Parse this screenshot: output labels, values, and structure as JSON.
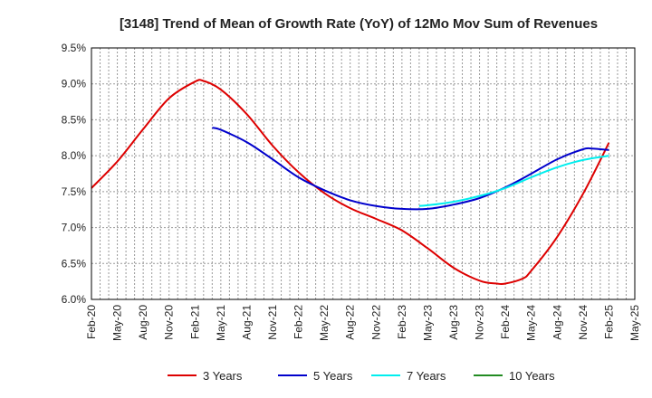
{
  "chart_data": {
    "type": "line",
    "title": "[3148]  Trend of Mean of Growth Rate (YoY) of 12Mo Mov Sum of Revenues",
    "xlabel": "",
    "ylabel": "",
    "ylim": [
      6.0,
      9.5
    ],
    "y_ticks": [
      6.0,
      6.5,
      7.0,
      7.5,
      8.0,
      8.5,
      9.0,
      9.5
    ],
    "y_tick_labels": [
      "6.0%",
      "6.5%",
      "7.0%",
      "7.5%",
      "8.0%",
      "8.5%",
      "9.0%",
      "9.5%"
    ],
    "x_ticks": [
      "Feb-20",
      "May-20",
      "Aug-20",
      "Nov-20",
      "Feb-21",
      "May-21",
      "Aug-21",
      "Nov-21",
      "Feb-22",
      "May-22",
      "Aug-22",
      "Nov-22",
      "Feb-23",
      "May-23",
      "Aug-23",
      "Nov-23",
      "Feb-24",
      "May-24",
      "Aug-24",
      "Nov-24",
      "Feb-25",
      "May-25"
    ],
    "grid": true,
    "legend_position": "bottom",
    "series": [
      {
        "name": "3 Years",
        "color": "#dd0000",
        "x": [
          "Feb-20",
          "May-20",
          "Aug-20",
          "Nov-20",
          "Feb-21",
          "Mar-21",
          "May-21",
          "Aug-21",
          "Nov-21",
          "Feb-22",
          "May-22",
          "Aug-22",
          "Nov-22",
          "Feb-23",
          "May-23",
          "Aug-23",
          "Nov-23",
          "Jan-24",
          "Feb-24",
          "Apr-24",
          "May-24",
          "Aug-24",
          "Nov-24",
          "Feb-25"
        ],
        "values": [
          7.55,
          7.92,
          8.37,
          8.8,
          9.03,
          9.04,
          8.92,
          8.58,
          8.14,
          7.77,
          7.48,
          7.27,
          7.12,
          6.96,
          6.71,
          6.44,
          6.26,
          6.22,
          6.22,
          6.29,
          6.4,
          6.87,
          7.47,
          8.18
        ]
      },
      {
        "name": "5 Years",
        "color": "#0000cc",
        "x": [
          "Apr-21",
          "May-21",
          "Aug-21",
          "Nov-21",
          "Feb-22",
          "May-22",
          "Aug-22",
          "Nov-22",
          "Feb-23",
          "May-23",
          "Aug-23",
          "Nov-23",
          "Feb-24",
          "May-24",
          "Aug-24",
          "Nov-24",
          "Dec-24",
          "Feb-25"
        ],
        "values": [
          8.39,
          8.36,
          8.19,
          7.95,
          7.7,
          7.52,
          7.38,
          7.3,
          7.26,
          7.26,
          7.32,
          7.41,
          7.56,
          7.75,
          7.95,
          8.09,
          8.1,
          8.08
        ]
      },
      {
        "name": "7 Years",
        "color": "#00eeee",
        "x": [
          "Apr-23",
          "May-23",
          "Aug-23",
          "Nov-23",
          "Feb-24",
          "May-24",
          "Aug-24",
          "Nov-24",
          "Feb-25"
        ],
        "values": [
          7.3,
          7.31,
          7.36,
          7.44,
          7.55,
          7.7,
          7.84,
          7.94,
          8.0
        ]
      },
      {
        "name": "10 Years",
        "color": "#228b22",
        "x": [],
        "values": []
      }
    ]
  }
}
